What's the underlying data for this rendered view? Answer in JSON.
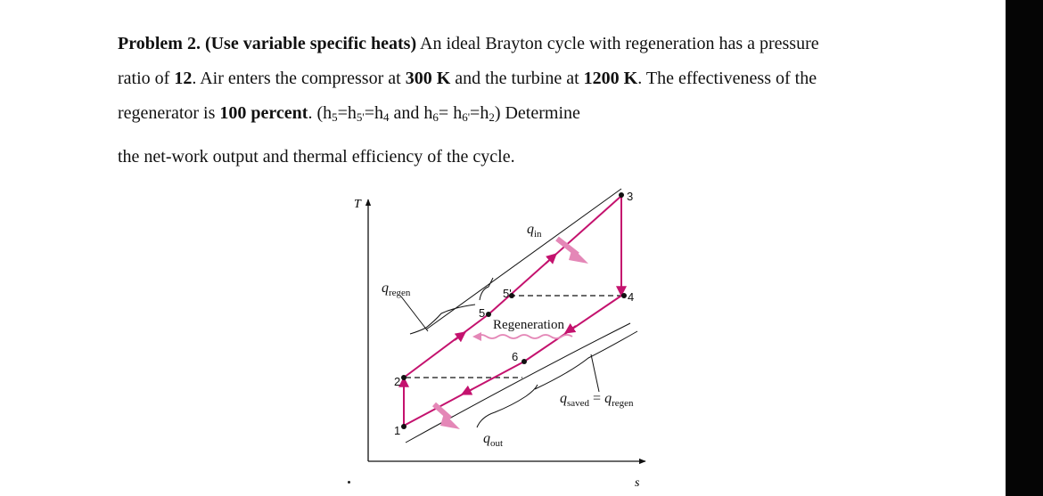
{
  "problem": {
    "label": "Problem 2.",
    "hint": "(Use variable specific heats)",
    "text1": " An ideal Brayton cycle with regeneration has a pressure",
    "text2a": "ratio of ",
    "ratio": "12",
    "text2b": ". Air enters the compressor at ",
    "t_comp": "300 K",
    "text2c": " and the turbine at ",
    "t_turb": "1200 K",
    "text2d": ". The effectiveness of the",
    "text3a": "regenerator is ",
    "effectiveness": "100 percent",
    "text3b": ". (h",
    "s5": "5",
    "t_eq1": "=h",
    "s5p": "5'",
    "t_eq2": "=h",
    "s4": "4",
    "t_and": " and h",
    "s6": "6",
    "t_eq3": "= h",
    "s6p": "6'",
    "t_eq4": "=h",
    "s2": "2",
    "t_end": ") Determine",
    "text4": "the net-work output and thermal efficiency of the cycle."
  },
  "diagram": {
    "axis_t": "T",
    "axis_s": "s",
    "q_in": "q",
    "q_in_sub": "in",
    "q_out": "q",
    "q_out_sub": "out",
    "q_regen": "q",
    "q_regen_sub": "regen",
    "q_saved": "q",
    "q_saved_sub": "saved",
    "eq": " = ",
    "q_regen2": "q",
    "q_regen2_sub": "regen",
    "regeneration": "Regeneration",
    "points": [
      "1",
      "2",
      "3",
      "4",
      "5",
      "5'",
      "6"
    ],
    "cycle_color": "#c4126e",
    "arrow_color": "#e487b7"
  }
}
